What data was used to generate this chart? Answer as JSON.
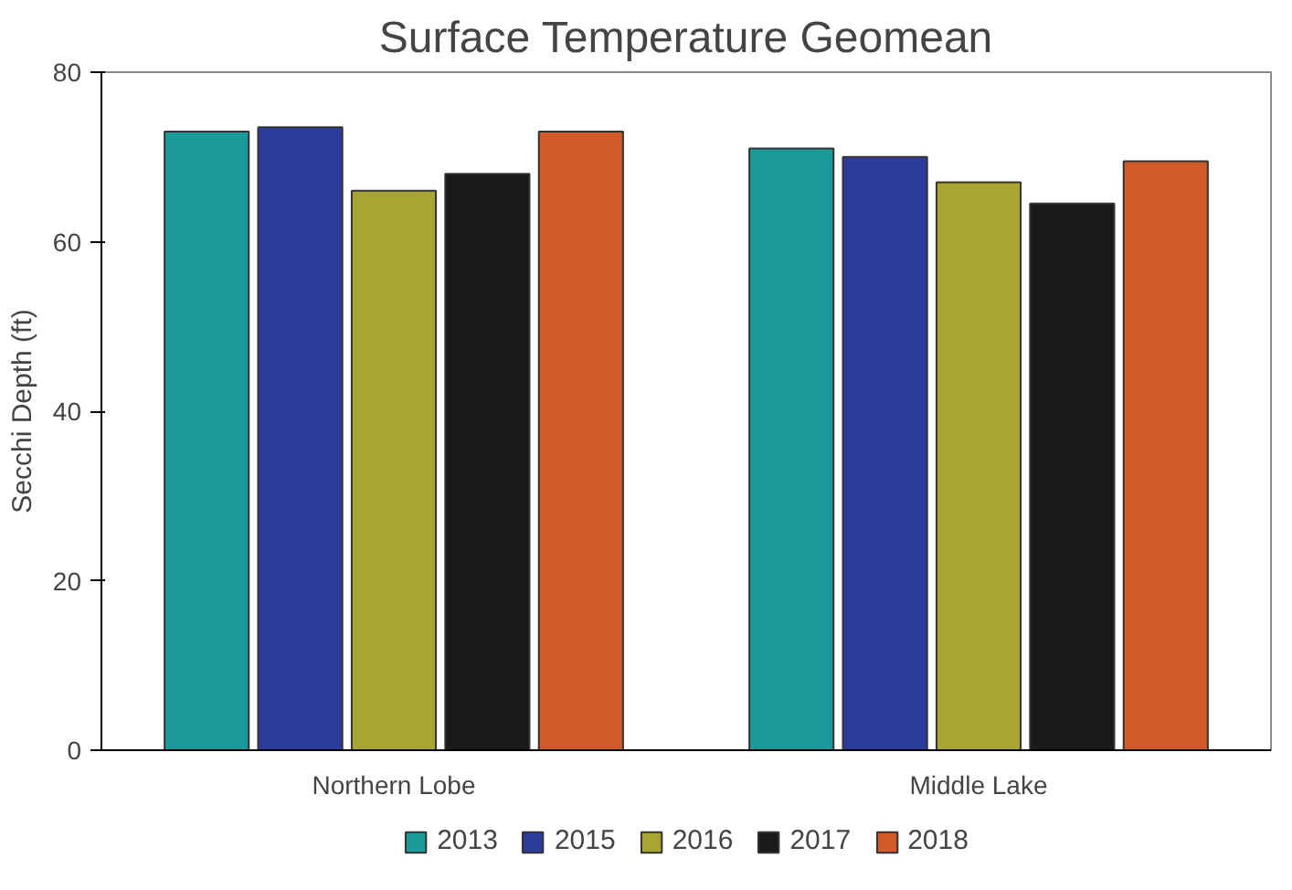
{
  "chart_data": {
    "type": "bar",
    "title": "Surface Temperature Geomean",
    "ylabel": "Secchi Depth (ft)",
    "categories": [
      "Northern Lobe",
      "Middle Lake"
    ],
    "series": [
      {
        "name": "2013",
        "color": "#1b9a9c",
        "values": [
          73,
          71
        ]
      },
      {
        "name": "2015",
        "color": "#2b3c9c",
        "values": [
          73.5,
          70
        ]
      },
      {
        "name": "2016",
        "color": "#a8a532",
        "values": [
          66,
          67
        ]
      },
      {
        "name": "2017",
        "color": "#1a1a1a",
        "values": [
          68,
          64.5
        ]
      },
      {
        "name": "2018",
        "color": "#d2592a",
        "values": [
          73,
          69.5
        ]
      }
    ],
    "ylim": [
      0,
      80
    ],
    "yticks": [
      0,
      20,
      40,
      60,
      80
    ],
    "grid": false,
    "legend": "bottom"
  }
}
